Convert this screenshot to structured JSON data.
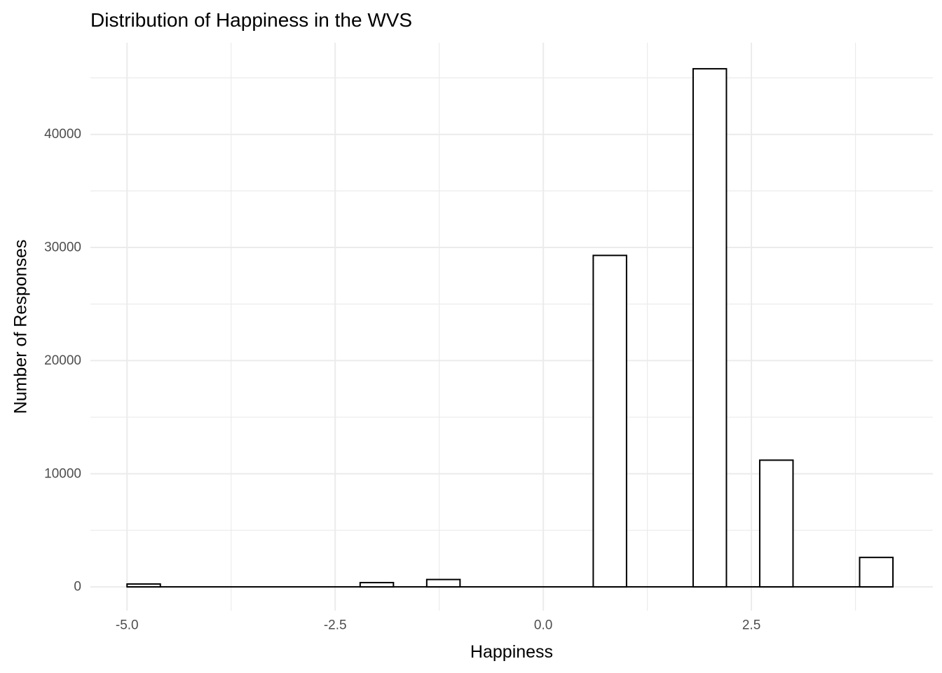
{
  "chart_data": {
    "type": "histogram",
    "title": "Distribution of Happiness in the WVS",
    "xlabel": "Happiness",
    "ylabel": "Number of Responses",
    "binwidth": 0.4,
    "bins": [
      {
        "x": -4.8,
        "count": 250
      },
      {
        "x": -2.0,
        "count": 375
      },
      {
        "x": -1.2,
        "count": 650
      },
      {
        "x": 0.8,
        "count": 29300
      },
      {
        "x": 2.0,
        "count": 45800
      },
      {
        "x": 2.8,
        "count": 11200
      },
      {
        "x": 4.0,
        "count": 2600
      }
    ],
    "zero_count_extent": [
      -5.0,
      4.2
    ],
    "x_axis": {
      "major_ticks": [
        -5.0,
        -2.5,
        0.0,
        2.5
      ],
      "tick_labels": [
        "-5.0",
        "-2.5",
        "0.0",
        "2.5"
      ],
      "minor_ticks": [
        -3.75,
        -1.25,
        1.25,
        3.75
      ],
      "lim": [
        -5.44,
        4.68
      ]
    },
    "y_axis": {
      "major_ticks": [
        0,
        10000,
        20000,
        30000,
        40000
      ],
      "tick_labels": [
        "0",
        "10000",
        "20000",
        "30000",
        "40000"
      ],
      "minor_ticks": [
        5000,
        15000,
        25000,
        35000,
        45000
      ],
      "lim": [
        -2100,
        48100
      ]
    },
    "grid": "major-and-minor",
    "legend_position": "none",
    "colors": {
      "background": "#FFFFFF",
      "grid": "#EBEBEB",
      "bar_fill": "#FFFFFF",
      "bar_stroke": "#000000",
      "tick_label_text": "#4D4D4D",
      "title_text": "#000000"
    }
  }
}
